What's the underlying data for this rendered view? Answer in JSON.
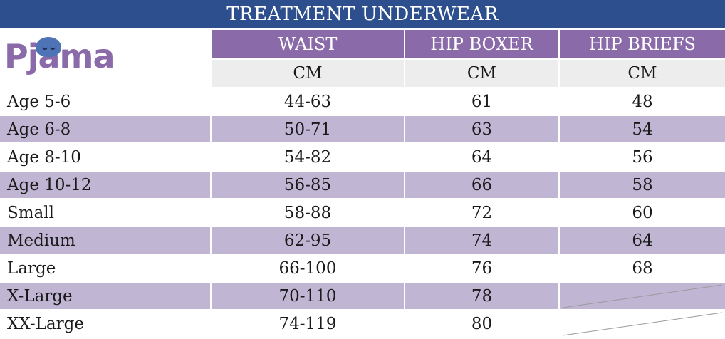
{
  "title": "TREATMENT UNDERWEAR",
  "logo": {
    "text": "Pjama"
  },
  "columns": [
    {
      "name": "WAIST",
      "unit": "CM"
    },
    {
      "name": "HIP BOXER",
      "unit": "CM"
    },
    {
      "name": "HIP BRIEFS",
      "unit": "CM"
    }
  ],
  "rows": [
    {
      "label": "Age 5-6",
      "waist": "44-63",
      "hip_boxer": "61",
      "hip_briefs": "48"
    },
    {
      "label": "Age 6-8",
      "waist": "50-71",
      "hip_boxer": "63",
      "hip_briefs": "54"
    },
    {
      "label": "Age 8-10",
      "waist": "54-82",
      "hip_boxer": "64",
      "hip_briefs": "56"
    },
    {
      "label": "Age 10-12",
      "waist": "56-85",
      "hip_boxer": "66",
      "hip_briefs": "58"
    },
    {
      "label": "Small",
      "waist": "58-88",
      "hip_boxer": "72",
      "hip_briefs": "60"
    },
    {
      "label": "Medium",
      "waist": "62-95",
      "hip_boxer": "74",
      "hip_briefs": "64"
    },
    {
      "label": "Large",
      "waist": "66-100",
      "hip_boxer": "76",
      "hip_briefs": "68"
    },
    {
      "label": "X-Large",
      "waist": "70-110",
      "hip_boxer": "78",
      "hip_briefs": ""
    },
    {
      "label": "XX-Large",
      "waist": "74-119",
      "hip_boxer": "80",
      "hip_briefs": ""
    }
  ],
  "colors": {
    "title_bg": "#2e4f8e",
    "header_bg": "#8a6aa8",
    "unit_bg": "#ededed",
    "row_shade": "#c0b6d4"
  }
}
